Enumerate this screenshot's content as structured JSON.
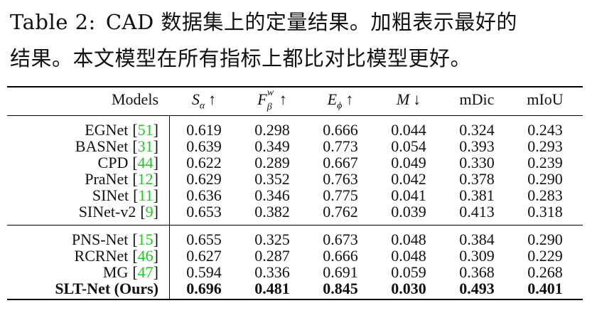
{
  "caption": {
    "label": "Table 2:",
    "text_line1": "CAD 数据集上的定量结果。加粗表示最好的",
    "text_line2": "结果。本文模型在所有指标上都比对比模型更好。"
  },
  "table": {
    "header": {
      "models": "Models",
      "s_alpha": {
        "base": "S",
        "sub": "α",
        "arrow": "↑"
      },
      "f_beta_w": {
        "base": "F",
        "sup": "w",
        "sub": "β",
        "arrow": "↑"
      },
      "e_phi": {
        "base": "E",
        "sub": "ϕ",
        "arrow": "↑"
      },
      "m": {
        "base": "M",
        "arrow": "↓"
      },
      "mdic": "mDic",
      "miou": "mIoU"
    },
    "group1": [
      {
        "name": "EGNet",
        "ref": "51",
        "values": [
          "0.619",
          "0.298",
          "0.666",
          "0.044",
          "0.324",
          "0.243"
        ]
      },
      {
        "name": "BASNet",
        "ref": "31",
        "values": [
          "0.639",
          "0.349",
          "0.773",
          "0.054",
          "0.393",
          "0.293"
        ]
      },
      {
        "name": "CPD",
        "ref": "44",
        "values": [
          "0.622",
          "0.289",
          "0.667",
          "0.049",
          "0.330",
          "0.239"
        ]
      },
      {
        "name": "PraNet",
        "ref": "12",
        "values": [
          "0.629",
          "0.352",
          "0.763",
          "0.042",
          "0.378",
          "0.290"
        ]
      },
      {
        "name": "SINet",
        "ref": "11",
        "values": [
          "0.636",
          "0.346",
          "0.775",
          "0.041",
          "0.381",
          "0.283"
        ]
      },
      {
        "name": "SINet-v2",
        "ref": "9",
        "values": [
          "0.653",
          "0.382",
          "0.762",
          "0.039",
          "0.413",
          "0.318"
        ]
      }
    ],
    "group2": [
      {
        "name": "PNS-Net",
        "ref": "15",
        "values": [
          "0.655",
          "0.325",
          "0.673",
          "0.048",
          "0.384",
          "0.290"
        ]
      },
      {
        "name": "RCRNet",
        "ref": "46",
        "values": [
          "0.627",
          "0.287",
          "0.666",
          "0.048",
          "0.309",
          "0.229"
        ]
      },
      {
        "name": "MG",
        "ref": "47",
        "values": [
          "0.594",
          "0.336",
          "0.691",
          "0.059",
          "0.368",
          "0.268"
        ]
      },
      {
        "name": "SLT-Net (Ours)",
        "ref": "",
        "bold": true,
        "values": [
          "0.696",
          "0.481",
          "0.845",
          "0.030",
          "0.493",
          "0.401"
        ]
      }
    ]
  },
  "colors": {
    "citation": "#1ec81e",
    "text": "#111111",
    "rule": "#000000"
  }
}
